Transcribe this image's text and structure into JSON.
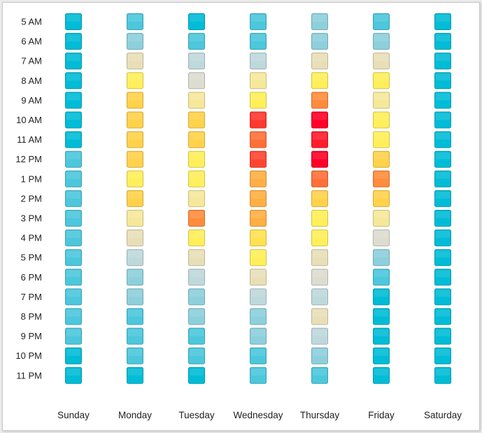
{
  "chart_data": {
    "type": "heatmap",
    "title": "",
    "xlabel": "",
    "ylabel": "",
    "x_categories": [
      "Sunday",
      "Monday",
      "Tuesday",
      "Wednesday",
      "Thursday",
      "Friday",
      "Saturday"
    ],
    "y_categories": [
      "5 AM",
      "6 AM",
      "7 AM",
      "8 AM",
      "9 AM",
      "10 AM",
      "11 AM",
      "12 PM",
      "1 PM",
      "2 PM",
      "3 PM",
      "4 PM",
      "5 PM",
      "6 PM",
      "7 PM",
      "8 PM",
      "9 PM",
      "10 PM",
      "11 PM"
    ],
    "value_range": [
      0,
      10
    ],
    "color_scale": [
      "#00bcd6",
      "#4cc7dc",
      "#8dd0dc",
      "#bfd8dc",
      "#dcdcd0",
      "#e8dfb8",
      "#f5e89a",
      "#ffef5a",
      "#ffd24a",
      "#ff8c3c",
      "#ff0028"
    ],
    "values": [
      [
        0,
        1,
        0,
        1,
        2,
        1,
        0
      ],
      [
        0,
        2,
        1,
        1,
        2,
        2,
        0
      ],
      [
        0,
        5,
        3,
        3,
        5,
        5,
        0
      ],
      [
        0,
        7,
        4,
        6,
        7,
        7,
        0
      ],
      [
        0,
        8,
        6,
        7,
        9,
        6,
        0
      ],
      [
        0,
        8,
        8,
        9.6,
        10,
        7,
        0
      ],
      [
        0,
        8,
        8,
        9.2,
        9.8,
        7,
        0
      ],
      [
        1,
        8,
        7,
        9.5,
        10,
        8,
        0
      ],
      [
        1,
        7,
        7,
        8.5,
        9.2,
        9,
        0
      ],
      [
        1,
        8,
        6,
        8.5,
        8,
        8,
        0
      ],
      [
        1,
        6,
        9,
        8.5,
        7,
        6,
        0
      ],
      [
        1,
        5,
        7,
        7.5,
        7,
        4,
        0
      ],
      [
        1,
        3,
        5,
        7,
        5,
        2,
        0
      ],
      [
        1,
        2,
        3,
        5,
        4,
        1,
        0
      ],
      [
        1,
        2,
        2,
        3,
        3,
        0,
        0
      ],
      [
        1,
        1,
        2,
        2,
        5,
        0,
        0
      ],
      [
        1,
        1,
        1,
        2,
        3,
        0,
        0
      ],
      [
        0,
        1,
        1,
        1,
        2,
        0,
        0
      ],
      [
        0,
        0,
        0,
        1,
        1,
        0,
        0
      ]
    ],
    "grid": false,
    "legend": "none"
  }
}
